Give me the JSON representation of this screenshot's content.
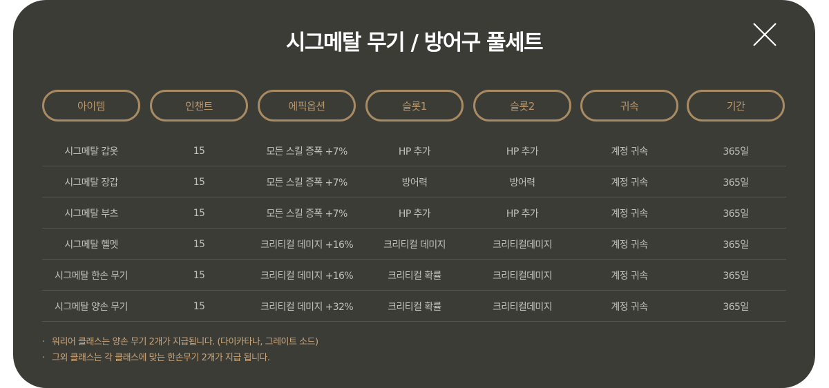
{
  "title": "시그메탈 무기 / 방어구 풀세트",
  "close_icon": "close-icon",
  "colors": {
    "background": "#3c3c37",
    "accent": "#a88b63",
    "text": "#c0c0bb",
    "note": "#c8a57b"
  },
  "headers": [
    "아이템",
    "인챈트",
    "에픽옵션",
    "슬롯1",
    "슬롯2",
    "귀속",
    "기간"
  ],
  "rows": [
    [
      "시그메탈 갑옷",
      "15",
      "모든 스킬 증폭 +7%",
      "HP 추가",
      "HP 추가",
      "계정 귀속",
      "365일"
    ],
    [
      "시그메탈 장갑",
      "15",
      "모든 스킬 증폭 +7%",
      "방어력",
      "방어력",
      "계정 귀속",
      "365일"
    ],
    [
      "시그메탈 부츠",
      "15",
      "모든 스킬 증폭 +7%",
      "HP 추가",
      "HP 추가",
      "계정 귀속",
      "365일"
    ],
    [
      "시그메탈 헬멧",
      "15",
      "크리티컬 데미지 +16%",
      "크리티컬 데미지",
      "크리티컬데미지",
      "계정 귀속",
      "365일"
    ],
    [
      "시그메탈 한손 무기",
      "15",
      "크리티컬 데미지 +16%",
      "크리티컬 확률",
      "크리티컬데미지",
      "계정 귀속",
      "365일"
    ],
    [
      "시그메탈 양손 무기",
      "15",
      "크리티컬 데미지 +32%",
      "크리티컬 확률",
      "크리티컬데미지",
      "계정 귀속",
      "365일"
    ]
  ],
  "notes": [
    "워리어 클래스는 양손 무기 2개가 지급됩니다. (다이카타나, 그레이트 소드)",
    "그외 클래스는 각 클래스에 맞는 한손무기 2개가 지급 됩니다."
  ],
  "note_bullet": "·"
}
